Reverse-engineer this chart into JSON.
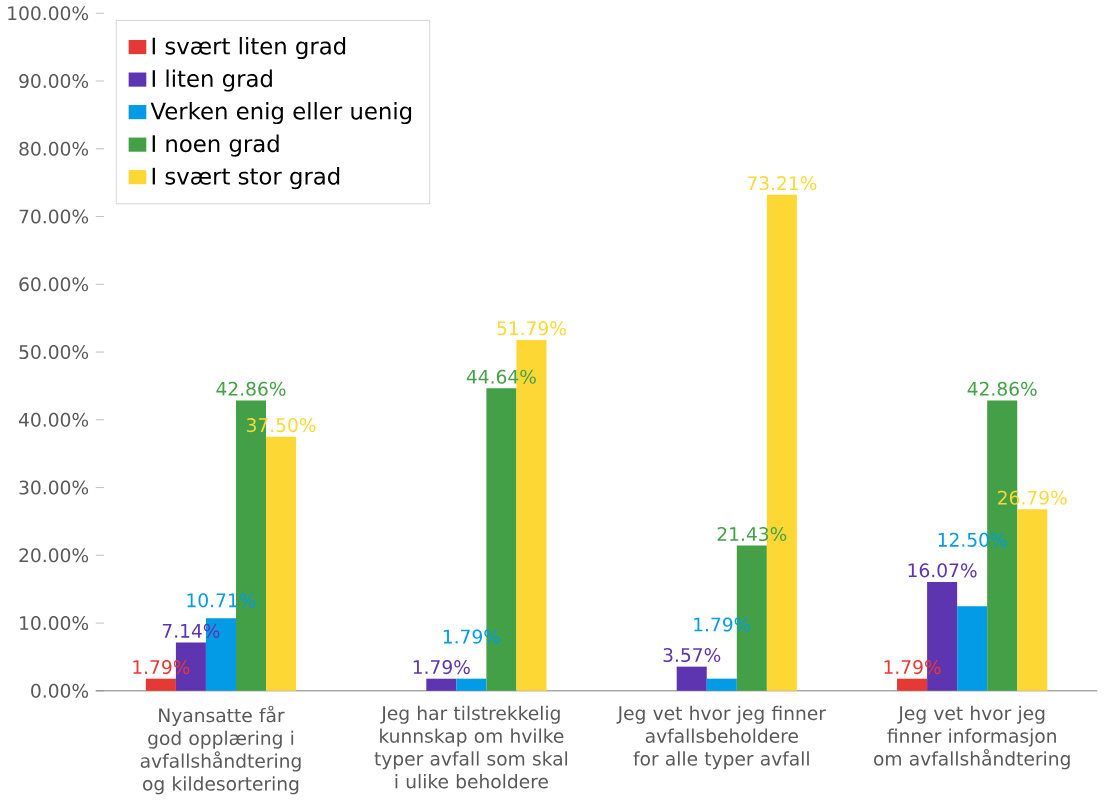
{
  "chart_data": {
    "type": "bar",
    "categories": [
      "Nyansatte får god opplæring i avfallshåndtering og kildesortering",
      "Jeg har tilstrekkelig kunnskap om hvilke typer avfall som skal i ulike beholdere",
      "Jeg vet hvor jeg finner avfallsbeholdere for alle typer avfall",
      "Jeg vet hvor jeg finner informasjon om avfallshåndtering"
    ],
    "series": [
      {
        "name": "I svært liten grad",
        "color": "#e53935",
        "values": [
          1.79,
          null,
          null,
          1.79
        ],
        "value_labels": [
          "1.79%",
          null,
          null,
          "1.79%"
        ]
      },
      {
        "name": "I liten grad",
        "color": "#5e35b1",
        "values": [
          7.14,
          1.79,
          3.57,
          16.07
        ],
        "value_labels": [
          "7.14%",
          "1.79%",
          "3.57%",
          "16.07%"
        ]
      },
      {
        "name": "Verken enig eller uenig",
        "color": "#039be5",
        "values": [
          10.71,
          1.79,
          1.79,
          12.5
        ],
        "value_labels": [
          "10.71%",
          "1.79%",
          "1.79%",
          "12.50%"
        ]
      },
      {
        "name": "I noen grad",
        "color": "#43a047",
        "values": [
          42.86,
          44.64,
          21.43,
          42.86
        ],
        "value_labels": [
          "42.86%",
          "44.64%",
          "21.43%",
          "42.86%"
        ]
      },
      {
        "name": "I svært stor grad",
        "color": "#fdd835",
        "values": [
          37.5,
          51.79,
          73.21,
          26.79
        ],
        "value_labels": [
          "37.50%",
          "51.79%",
          "73.21%",
          "26.79%"
        ]
      }
    ],
    "ylim": [
      0,
      100
    ],
    "yticks": [
      {
        "value": 0,
        "label": "0.00%"
      },
      {
        "value": 10,
        "label": "10.00%"
      },
      {
        "value": 20,
        "label": "20.00%"
      },
      {
        "value": 30,
        "label": "30.00%"
      },
      {
        "value": 40,
        "label": "40.00%"
      },
      {
        "value": 50,
        "label": "50.00%"
      },
      {
        "value": 60,
        "label": "60.00%"
      },
      {
        "value": 70,
        "label": "70.00%"
      },
      {
        "value": 80,
        "label": "80.00%"
      },
      {
        "value": 90,
        "label": "90.00%"
      },
      {
        "value": 100,
        "label": "100.00%"
      }
    ],
    "legend": "top left"
  }
}
